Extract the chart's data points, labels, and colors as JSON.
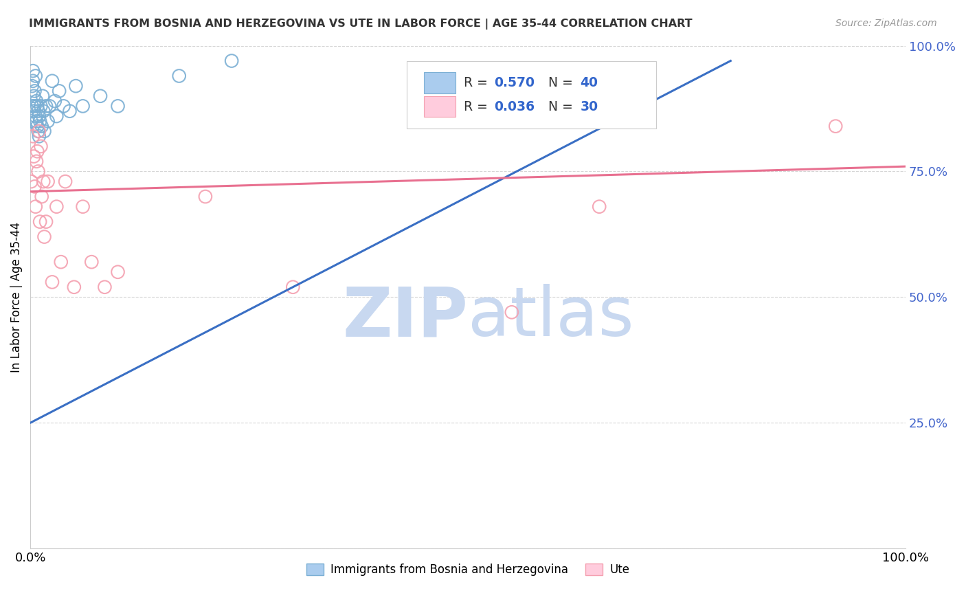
{
  "title": "IMMIGRANTS FROM BOSNIA AND HERZEGOVINA VS UTE IN LABOR FORCE | AGE 35-44 CORRELATION CHART",
  "source": "Source: ZipAtlas.com",
  "ylabel": "In Labor Force | Age 35-44",
  "xlim": [
    0,
    1
  ],
  "ylim": [
    0,
    1
  ],
  "yticks": [
    0.0,
    0.25,
    0.5,
    0.75,
    1.0
  ],
  "ytick_labels": [
    "",
    "25.0%",
    "50.0%",
    "75.0%",
    "100.0%"
  ],
  "blue_R": "0.570",
  "blue_N": "40",
  "pink_R": "0.036",
  "pink_N": "30",
  "blue_marker_color": "#7BAFD4",
  "pink_marker_color": "#F4A0B0",
  "blue_line_color": "#3A6FC4",
  "pink_line_color": "#E87090",
  "legend_label_blue": "Immigrants from Bosnia and Herzegovina",
  "legend_label_pink": "Ute",
  "blue_points_x": [
    0.001,
    0.002,
    0.002,
    0.003,
    0.003,
    0.004,
    0.004,
    0.005,
    0.005,
    0.006,
    0.006,
    0.007,
    0.007,
    0.008,
    0.008,
    0.009,
    0.009,
    0.01,
    0.01,
    0.011,
    0.012,
    0.013,
    0.014,
    0.015,
    0.016,
    0.018,
    0.02,
    0.022,
    0.025,
    0.028,
    0.03,
    0.033,
    0.038,
    0.045,
    0.052,
    0.06,
    0.08,
    0.1,
    0.17,
    0.23
  ],
  "blue_points_y": [
    0.85,
    0.92,
    0.88,
    0.95,
    0.93,
    0.9,
    0.87,
    0.91,
    0.88,
    0.94,
    0.86,
    0.89,
    0.85,
    0.88,
    0.84,
    0.87,
    0.83,
    0.86,
    0.82,
    0.85,
    0.88,
    0.84,
    0.9,
    0.87,
    0.83,
    0.88,
    0.85,
    0.88,
    0.93,
    0.89,
    0.86,
    0.91,
    0.88,
    0.87,
    0.92,
    0.88,
    0.9,
    0.88,
    0.94,
    0.97
  ],
  "pink_points_x": [
    0.001,
    0.003,
    0.004,
    0.005,
    0.006,
    0.007,
    0.008,
    0.009,
    0.01,
    0.011,
    0.012,
    0.013,
    0.015,
    0.016,
    0.018,
    0.02,
    0.025,
    0.03,
    0.035,
    0.04,
    0.05,
    0.06,
    0.07,
    0.085,
    0.1,
    0.2,
    0.3,
    0.55,
    0.65,
    0.92
  ],
  "pink_points_y": [
    0.73,
    0.82,
    0.78,
    0.72,
    0.68,
    0.77,
    0.79,
    0.75,
    0.83,
    0.65,
    0.8,
    0.7,
    0.73,
    0.62,
    0.65,
    0.73,
    0.53,
    0.68,
    0.57,
    0.73,
    0.52,
    0.68,
    0.57,
    0.52,
    0.55,
    0.7,
    0.52,
    0.47,
    0.68,
    0.84
  ],
  "blue_trend": [
    0.0,
    0.25,
    0.8,
    0.97
  ],
  "pink_trend": [
    0.0,
    1.0,
    0.71,
    0.76
  ],
  "watermark_zip": "ZIP",
  "watermark_atlas": "atlas",
  "watermark_color_zip": "#C8D8F0",
  "watermark_color_atlas": "#C8D8F0"
}
